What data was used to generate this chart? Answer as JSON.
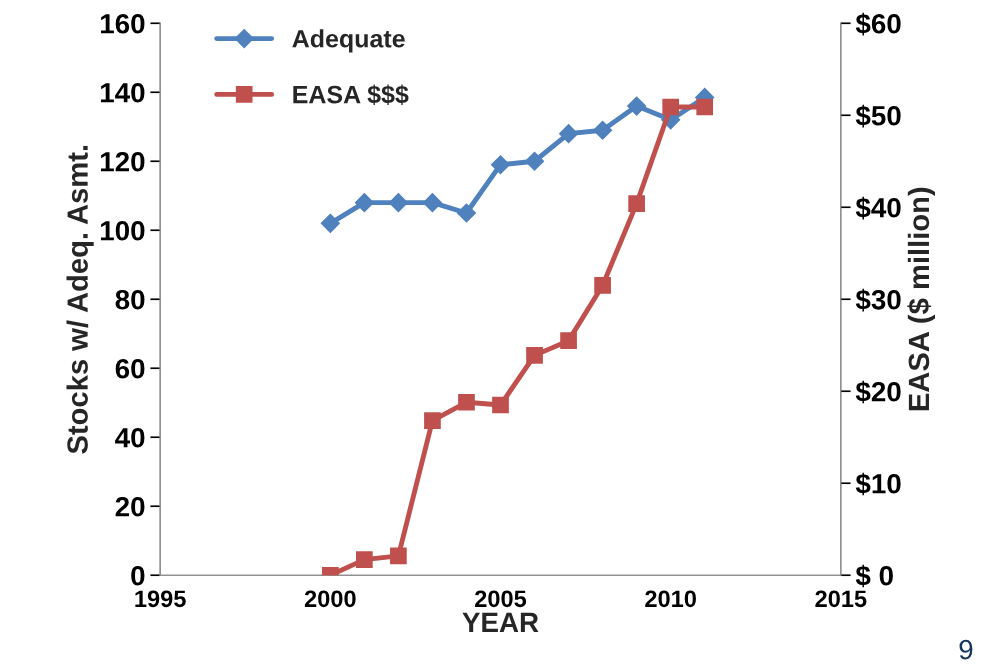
{
  "chart_data": {
    "type": "line",
    "xlabel": "YEAR",
    "ylabel": "Stocks w/ Adeq. Asmt.",
    "y2label": "EASA ($ million)",
    "x": [
      2000,
      2001,
      2002,
      2003,
      2004,
      2005,
      2006,
      2007,
      2008,
      2009,
      2010,
      2011
    ],
    "series": [
      {
        "name": "Adequate",
        "color": "#4f81bd",
        "marker": "diamond",
        "values": [
          102,
          108,
          108,
          108,
          105,
          119,
          120,
          128,
          129,
          136,
          132,
          138.5
        ]
      },
      {
        "name": "EASA $$$",
        "color": "#c0504d",
        "marker": "square",
        "axis": "y2",
        "values": [
          0,
          1.7,
          2.1,
          16.8,
          18.8,
          18.5,
          23.9,
          25.5,
          31.5,
          40.4,
          50.9,
          50.9
        ]
      }
    ],
    "xlim": [
      1995,
      2015
    ],
    "xticks": [
      1995,
      2000,
      2005,
      2010,
      2015
    ],
    "ylim": [
      0,
      160
    ],
    "yticks": [
      0,
      20,
      40,
      60,
      80,
      100,
      120,
      140,
      160
    ],
    "y2lim": [
      0,
      60
    ],
    "y2ticks": [
      {
        "value": 0,
        "label": "$ 0"
      },
      {
        "value": 10,
        "label": "$10"
      },
      {
        "value": 20,
        "label": "$20"
      },
      {
        "value": 30,
        "label": "$30"
      },
      {
        "value": 40,
        "label": "$40"
      },
      {
        "value": 50,
        "label": "$50"
      },
      {
        "value": 60,
        "label": "$60"
      }
    ],
    "grid": false,
    "legend": "top left",
    "line_style": "solid",
    "annotations": [
      "9"
    ]
  }
}
